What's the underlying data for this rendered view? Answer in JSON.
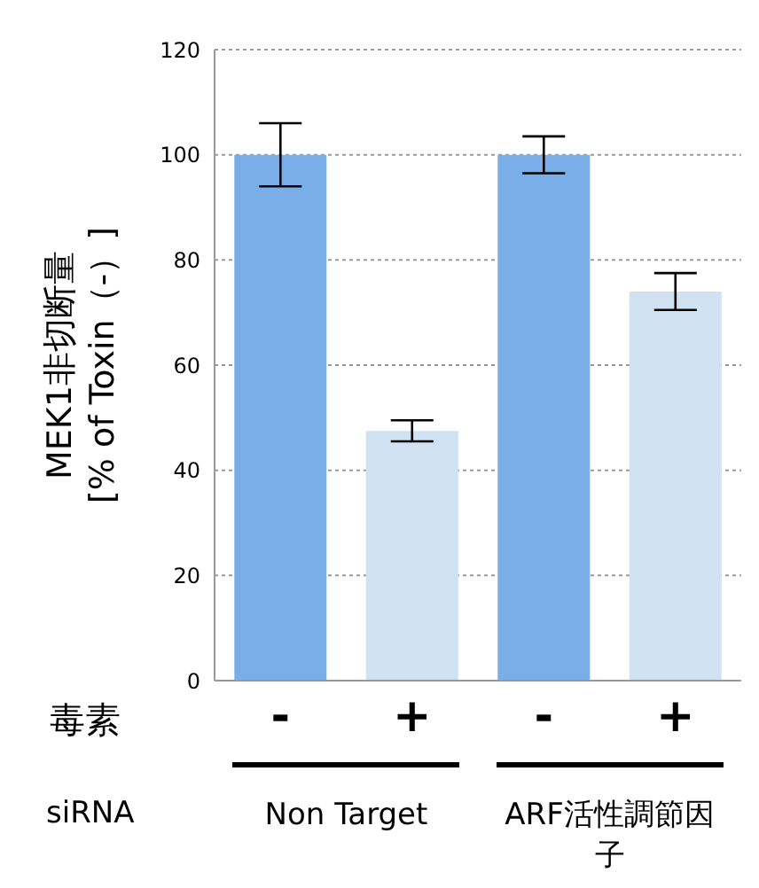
{
  "chart_data": {
    "type": "bar",
    "ylabel": "MEK1非切断量\n[% of Toxin（-）]",
    "categories": [
      "-",
      "+",
      "-",
      "+"
    ],
    "values": [
      100,
      47.5,
      100,
      74
    ],
    "errors": [
      6,
      2,
      3.5,
      3.5
    ],
    "colors": [
      "#7aaee8",
      "#d0e1f2",
      "#7aaee8",
      "#d0e1f2"
    ],
    "ylim": [
      0,
      120
    ],
    "yticks": [
      0,
      20,
      40,
      60,
      80,
      100,
      120
    ],
    "grid": "y",
    "annotations": [
      "毒素",
      "siRNA",
      "Non Target",
      "ARF活性調節因子"
    ]
  }
}
